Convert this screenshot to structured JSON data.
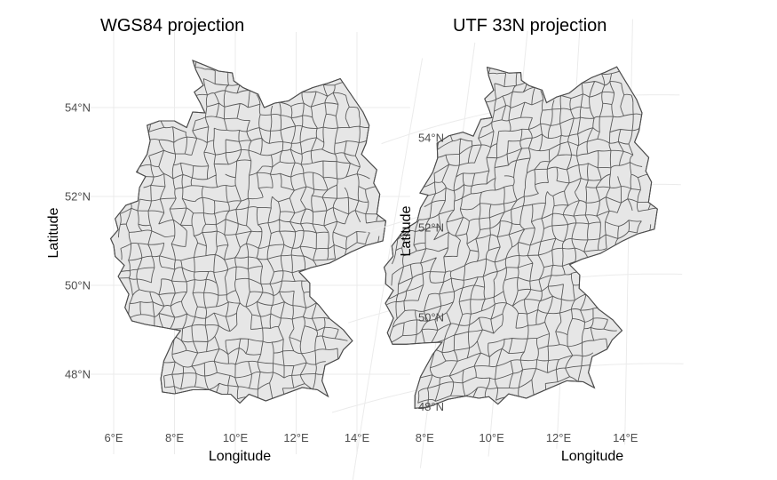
{
  "chart_data": [
    {
      "type": "map",
      "title": "WGS84 projection",
      "xlabel": "Longitude",
      "ylabel": "Latitude",
      "x_ticks": [
        "6°E",
        "8°E",
        "10°E",
        "12°E",
        "14°E"
      ],
      "y_ticks": [
        "48°N",
        "50°N",
        "52°N",
        "54°N"
      ],
      "xlim": [
        5.6,
        15.6
      ],
      "ylim": [
        47.0,
        55.3
      ],
      "grid": true,
      "fill_color": "#e6e6e6",
      "border_color": "#4d4d4d"
    },
    {
      "type": "map",
      "title": "UTF 33N projection",
      "xlabel": "Longitude",
      "ylabel": "Latitude",
      "x_ticks": [
        "8°E",
        "10°E",
        "12°E",
        "14°E"
      ],
      "y_ticks": [
        "48°N",
        "50°N",
        "52°N",
        "54°N"
      ],
      "xlim": [
        5.6,
        15.6
      ],
      "ylim": [
        47.0,
        55.3
      ],
      "grid": true,
      "fill_color": "#e6e6e6",
      "border_color": "#4d4d4d"
    }
  ]
}
